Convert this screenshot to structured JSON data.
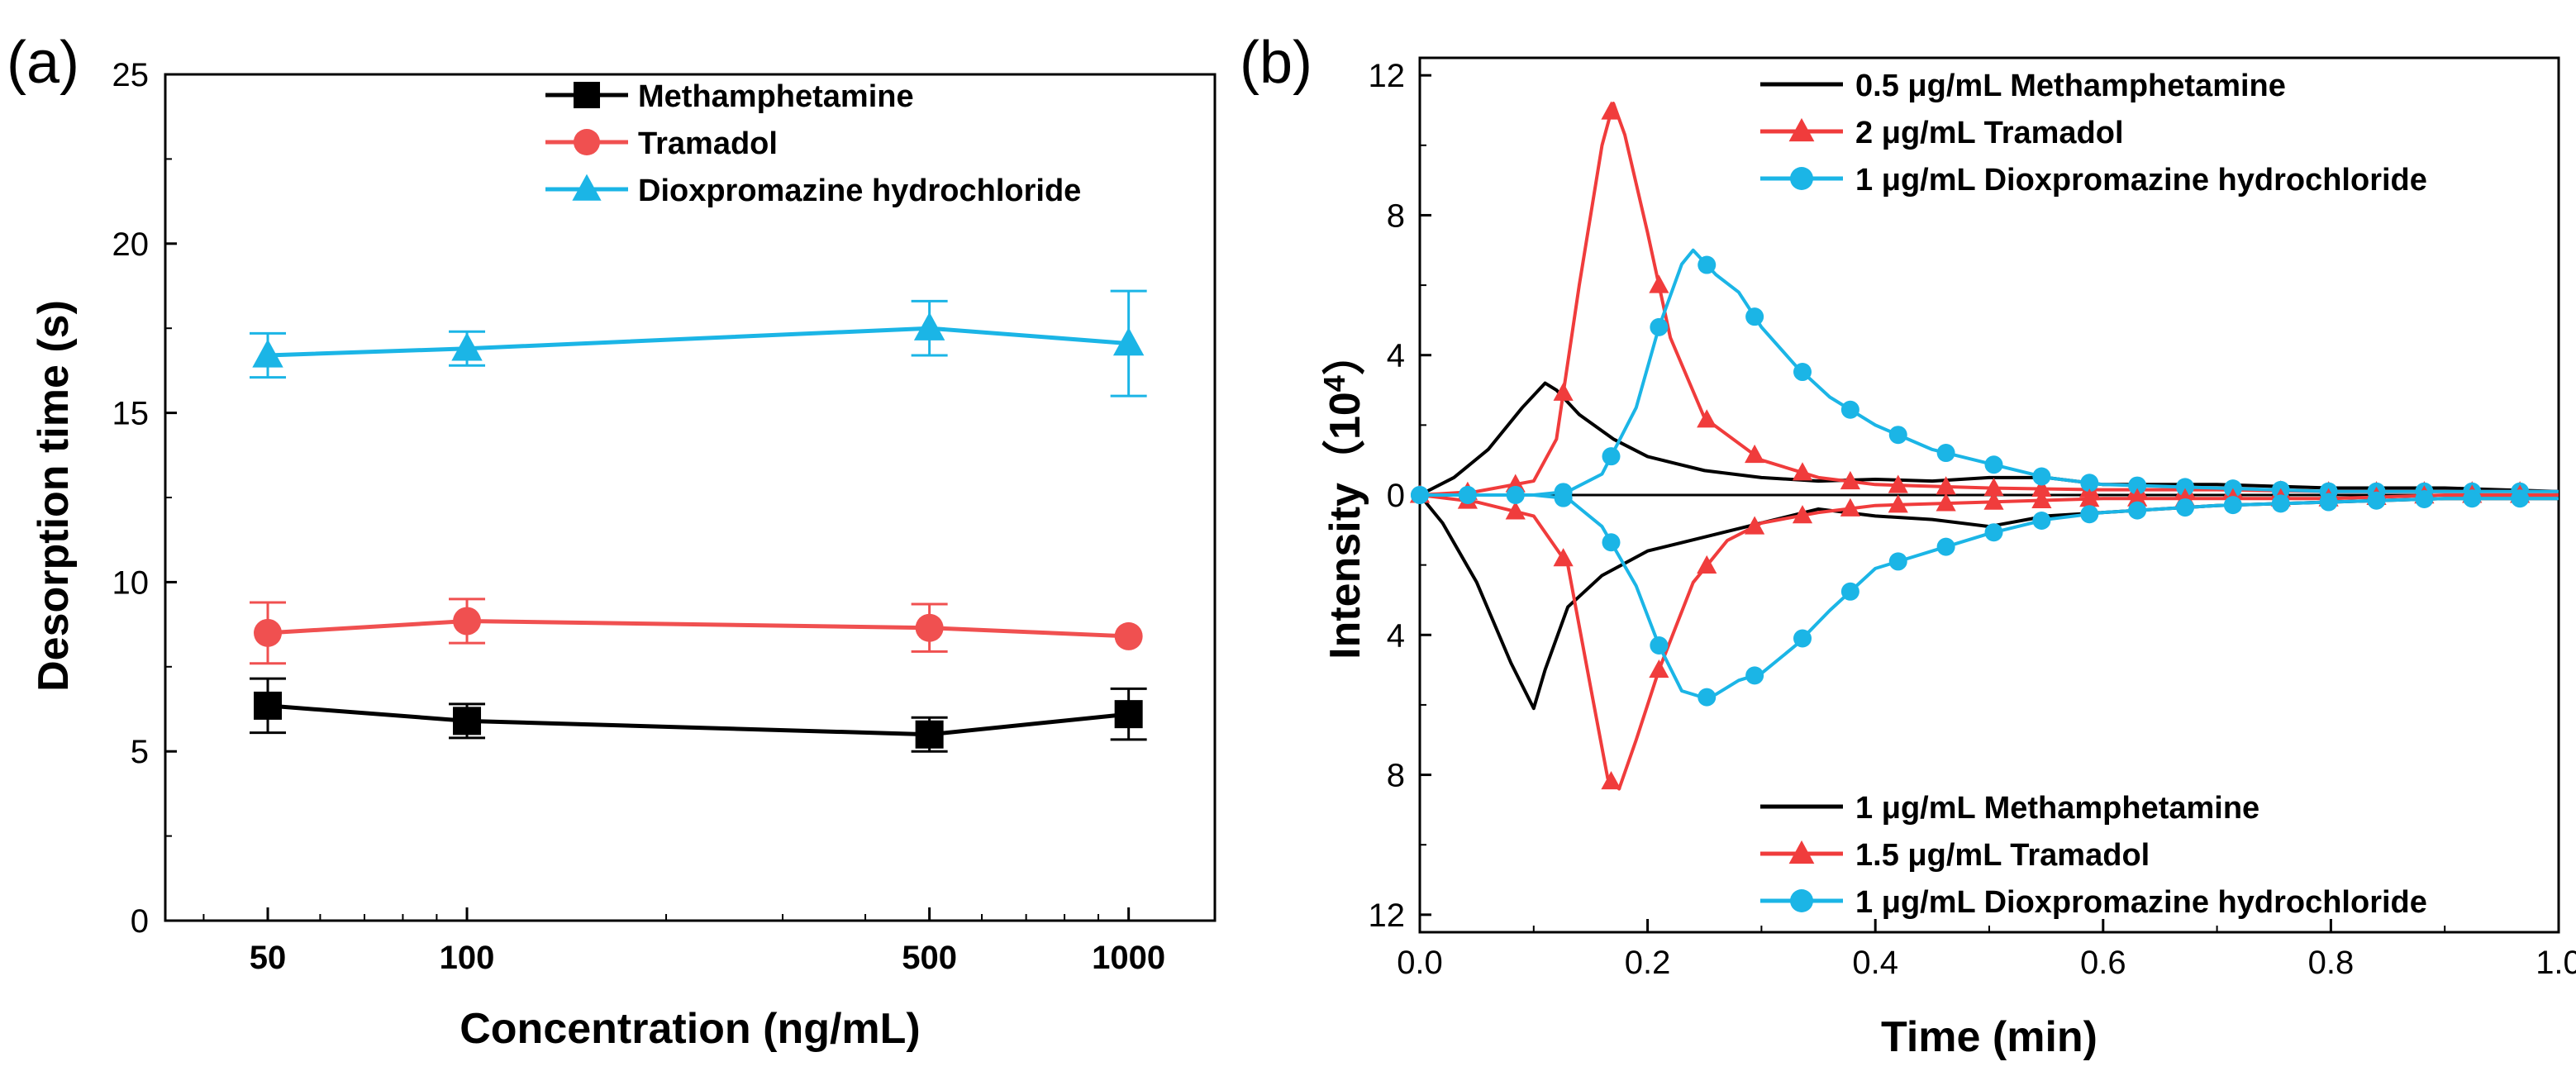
{
  "panel_a_label": "(a)",
  "panel_b_label": "(b)",
  "b_ylabel_text": "Intensity（10",
  "b_ylabel_exp": "4",
  "b_ylabel_close": "）",
  "chart_data": [
    {
      "type": "line",
      "title": "",
      "xlabel": "Concentration (ng/mL)",
      "ylabel": "Desorption time (s)",
      "xscale": "log",
      "xlim": [
        35,
        1350
      ],
      "ylim": [
        0,
        25
      ],
      "xticks": [
        "50",
        "100",
        "500",
        "1000"
      ],
      "xtick_values": [
        50,
        100,
        500,
        1000
      ],
      "yticks": [
        "0",
        "5",
        "10",
        "15",
        "20",
        "25"
      ],
      "ytick_values": [
        0,
        5,
        10,
        15,
        20,
        25
      ],
      "legend_position": "top-center",
      "series": [
        {
          "name": "Methamphetamine",
          "color": "#000000",
          "marker": "square",
          "x": [
            50,
            100,
            500,
            1000
          ],
          "values": [
            6.35,
            5.9,
            5.5,
            6.1
          ],
          "errors": [
            0.8,
            0.5,
            0.5,
            0.75
          ]
        },
        {
          "name": "Tramadol",
          "color": "#F05050",
          "marker": "circle",
          "x": [
            50,
            100,
            500,
            1000
          ],
          "values": [
            8.5,
            8.85,
            8.65,
            8.4
          ],
          "errors": [
            0.9,
            0.65,
            0.7,
            0.0
          ]
        },
        {
          "name": "Dioxpromazine hydrochloride",
          "color": "#1BB5E6",
          "marker": "triangle",
          "x": [
            50,
            100,
            500,
            1000
          ],
          "values": [
            16.7,
            16.9,
            17.5,
            17.05
          ],
          "errors": [
            0.65,
            0.5,
            0.8,
            1.55
          ]
        }
      ]
    },
    {
      "type": "line",
      "title": "",
      "xlabel": "Time (min)",
      "ylabel": "Intensity（10⁴）",
      "xlim": [
        0,
        1.0
      ],
      "ylim": [
        -12.5,
        12.5
      ],
      "xticks": [
        "0.0",
        "0.2",
        "0.4",
        "0.6",
        "0.8",
        "1.0"
      ],
      "xtick_values": [
        0,
        0.2,
        0.4,
        0.6,
        0.8,
        1.0
      ],
      "yticks": [
        "12",
        "8",
        "4",
        "0",
        "4",
        "8",
        "12"
      ],
      "ytick_values": [
        12,
        8,
        4,
        0,
        -4,
        -8,
        -12
      ],
      "legend_top_position": "top-right",
      "legend_bottom_position": "bottom-right",
      "series": [
        {
          "name": "0.5 μg/mL Methamphetamine",
          "color": "#000000",
          "marker": "none",
          "side": "top",
          "x": [
            0,
            0.03,
            0.06,
            0.09,
            0.11,
            0.12,
            0.14,
            0.17,
            0.2,
            0.25,
            0.3,
            0.35,
            0.4,
            0.45,
            0.5,
            0.55,
            0.6,
            0.7,
            0.8,
            0.9,
            1.0
          ],
          "values": [
            0,
            0.5,
            1.3,
            2.5,
            3.2,
            3.0,
            2.3,
            1.6,
            1.1,
            0.7,
            0.5,
            0.4,
            0.45,
            0.4,
            0.5,
            0.5,
            0.3,
            0.3,
            0.2,
            0.2,
            0.1
          ]
        },
        {
          "name": "2 μg/mL Tramadol",
          "color": "#F03C3C",
          "marker": "triangle",
          "side": "top",
          "x": [
            0,
            0.05,
            0.1,
            0.12,
            0.14,
            0.16,
            0.17,
            0.18,
            0.2,
            0.22,
            0.25,
            0.3,
            0.35,
            0.4,
            0.5,
            0.6,
            0.7,
            0.8,
            0.9,
            1.0
          ],
          "values": [
            0,
            0.1,
            0.4,
            1.6,
            6.0,
            10.0,
            11.2,
            10.3,
            7.5,
            4.5,
            2.2,
            1.0,
            0.5,
            0.3,
            0.2,
            0.15,
            0.15,
            0.1,
            0.1,
            0.1
          ]
        },
        {
          "name": "1 μg/mL Dioxpromazine hydrochloride",
          "color": "#1BB5E6",
          "marker": "circle",
          "side": "top",
          "x": [
            0,
            0.05,
            0.1,
            0.13,
            0.16,
            0.19,
            0.21,
            0.23,
            0.24,
            0.26,
            0.28,
            0.3,
            0.33,
            0.36,
            0.4,
            0.45,
            0.5,
            0.55,
            0.6,
            0.7,
            0.8,
            0.9,
            1.0
          ],
          "values": [
            0,
            0,
            0,
            0.1,
            0.6,
            2.5,
            4.8,
            6.6,
            7.0,
            6.3,
            5.8,
            4.8,
            3.7,
            2.8,
            2.0,
            1.3,
            0.9,
            0.5,
            0.3,
            0.2,
            0.1,
            0.1,
            0.1
          ]
        },
        {
          "name": "1 μg/mL Methamphetamine",
          "color": "#000000",
          "marker": "none",
          "side": "bottom",
          "x": [
            0,
            0.02,
            0.05,
            0.08,
            0.1,
            0.11,
            0.13,
            0.16,
            0.2,
            0.25,
            0.3,
            0.35,
            0.4,
            0.45,
            0.5,
            0.55,
            0.6,
            0.7,
            0.8,
            0.9,
            1.0
          ],
          "values": [
            0,
            -0.8,
            -2.5,
            -4.8,
            -6.1,
            -5.0,
            -3.2,
            -2.3,
            -1.6,
            -1.2,
            -0.8,
            -0.4,
            -0.6,
            -0.7,
            -0.9,
            -0.6,
            -0.5,
            -0.3,
            -0.2,
            -0.1,
            -0.1
          ]
        },
        {
          "name": "1.5 μg/mL Tramadol",
          "color": "#F03C3C",
          "marker": "triangle",
          "side": "bottom",
          "x": [
            0,
            0.05,
            0.1,
            0.13,
            0.15,
            0.165,
            0.175,
            0.19,
            0.21,
            0.24,
            0.27,
            0.3,
            0.35,
            0.4,
            0.5,
            0.6,
            0.7,
            0.8,
            0.9,
            1.0
          ],
          "values": [
            0,
            -0.2,
            -0.6,
            -2.0,
            -5.5,
            -8.1,
            -8.4,
            -7.0,
            -5.0,
            -2.5,
            -1.3,
            -0.8,
            -0.5,
            -0.3,
            -0.2,
            -0.1,
            -0.1,
            -0.1,
            0,
            0
          ]
        },
        {
          "name": "1 μg/mL Dioxpromazine hydrochloride",
          "color": "#1BB5E6",
          "marker": "circle",
          "side": "bottom",
          "x": [
            0,
            0.05,
            0.1,
            0.13,
            0.16,
            0.19,
            0.21,
            0.23,
            0.25,
            0.26,
            0.28,
            0.3,
            0.33,
            0.36,
            0.4,
            0.45,
            0.5,
            0.55,
            0.6,
            0.7,
            0.8,
            0.9,
            1.0
          ],
          "values": [
            0,
            0,
            0,
            -0.1,
            -0.9,
            -2.6,
            -4.3,
            -5.6,
            -5.8,
            -5.7,
            -5.3,
            -5.1,
            -4.3,
            -3.3,
            -2.1,
            -1.6,
            -1.1,
            -0.7,
            -0.5,
            -0.3,
            -0.2,
            -0.1,
            -0.1
          ]
        }
      ]
    }
  ]
}
